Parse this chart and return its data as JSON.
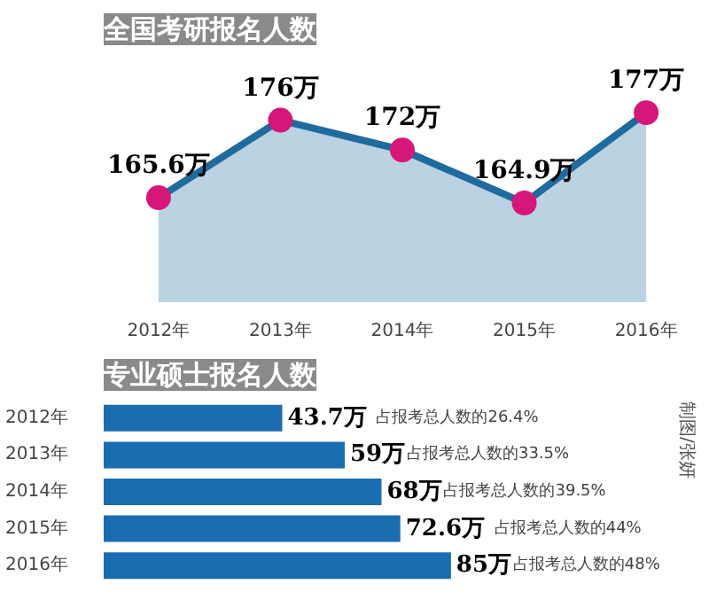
{
  "chart_data": [
    {
      "type": "area",
      "title": "全国考研报名人数",
      "categories": [
        "2012年",
        "2013年",
        "2014年",
        "2015年",
        "2016年"
      ],
      "series": [
        {
          "color": "#1f6b9e",
          "values": [
            165.6,
            176,
            172,
            164.9,
            177
          ],
          "value_labels": [
            "165.6万",
            "176万",
            "172万",
            "164.9万",
            "177万"
          ]
        }
      ],
      "tick_labels": "x",
      "marker": "circle",
      "grid": false
    },
    {
      "type": "bar",
      "orientation": "horizontal",
      "title": "专业硕士报名人数",
      "categories": [
        "2012年",
        "2013年",
        "2014年",
        "2015年",
        "2016年"
      ],
      "values": [
        43.7,
        59,
        68,
        72.6,
        85
      ],
      "color": "#1a6db0",
      "value_labels": [
        "43.7万",
        "59万",
        "68万",
        "72.6万",
        "85万"
      ],
      "tick_labels": "y",
      "grid": false,
      "annotations": [
        "占报考总人数的26.4%",
        "占报考总人数的33.5%",
        "占报考总人数的39.5%",
        "占报考总人数的44%",
        "占报考总人数的48%",
        "制图/张妍"
      ]
    }
  ]
}
